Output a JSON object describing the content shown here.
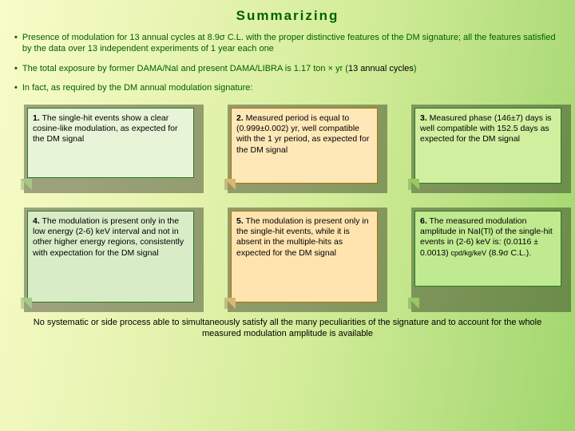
{
  "title": "Summarizing",
  "bullets": {
    "b1": "Presence of modulation for 13 annual cycles at 8.9σ C.L. with the proper distinctive features of the DM signature; all the features satisfied by the data over 13 independent experiments of 1 year each one",
    "b2_pre": "The total exposure by former DAMA/NaI and present DAMA/LIBRA is 1.17 ton × yr (",
    "b2_black": "13 annual cycles",
    "b2_post": ")",
    "b3": "In fact, as required by the DM annual modulation signature:"
  },
  "notes": {
    "n1_num": "1.",
    "n1": " The single-hit events show a clear cosine-like modulation, as expected for the DM signal",
    "n2_num": "2.",
    "n2": " Measured period is equal to (0.999±0.002) yr, well compatible with the 1 yr period, as expected for the DM signal",
    "n3_num": "3.",
    "n3": " Measured phase (146±7) days is well compatible with 152.5 days as expected for the DM signal",
    "n4_num": "4.",
    "n4": " The modulation is present only in the low energy (2-6) keV interval and not in other higher energy regions, consistently with expectation for the DM signal",
    "n5_num": "5.",
    "n5": " The modulation is present only in the single-hit events, while it is absent in the multiple-hits as expected for the DM signal",
    "n6_num": "6.",
    "n6a": " The measured modulation amplitude in NaI(Tl) of the single-hit events in (2-6) keV is: (0.0116 ± 0.0013) ",
    "n6b": "cpd/kg/keV",
    "n6c": " (8.9σ C.L.)."
  },
  "footer": "No systematic or side process able to simultaneously satisfy all the many peculiarities of the signature and to account for the whole measured modulation amplitude is available"
}
